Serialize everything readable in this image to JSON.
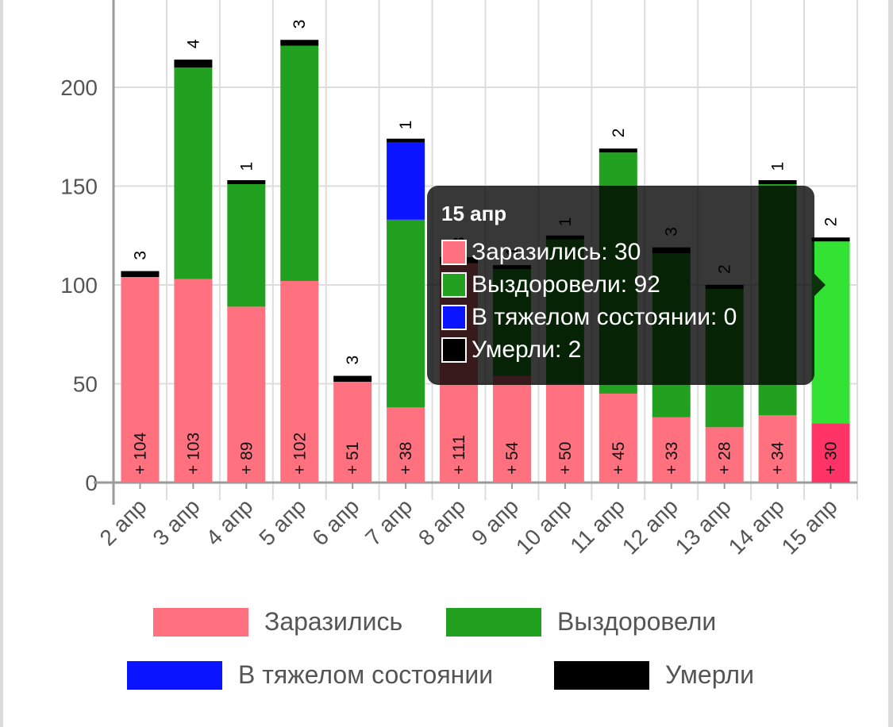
{
  "chart_data": {
    "type": "bar",
    "stacked": true,
    "categories": [
      "2 апр",
      "3 апр",
      "4 апр",
      "5 апр",
      "6 апр",
      "7 апр",
      "8 апр",
      "9 апр",
      "10 апр",
      "11 апр",
      "12 апр",
      "13 апр",
      "14 апр",
      "15 апр"
    ],
    "series": [
      {
        "name": "Заразились",
        "color": "#ff717f",
        "values": [
          104,
          103,
          89,
          102,
          51,
          38,
          111,
          54,
          50,
          45,
          33,
          28,
          34,
          30
        ]
      },
      {
        "name": "Выздоровели",
        "color": "#21a11f",
        "values": [
          0,
          107,
          62,
          119,
          0,
          95,
          0,
          54,
          73,
          122,
          83,
          70,
          117,
          92
        ]
      },
      {
        "name": "В тяжелом состоянии",
        "color": "#0a14ff",
        "values": [
          0,
          0,
          0,
          0,
          0,
          39,
          0,
          0,
          0,
          0,
          0,
          0,
          0,
          0
        ]
      },
      {
        "name": "Умерли",
        "color": "#000000",
        "values": [
          3,
          4,
          1,
          3,
          3,
          1,
          3,
          1,
          1,
          2,
          3,
          2,
          1,
          2
        ]
      }
    ],
    "data_label_prefix": "+ ",
    "ylim": [
      0,
      240
    ],
    "yticks": [
      0,
      50,
      100,
      150,
      200
    ],
    "grid": true,
    "legend": "bottom",
    "highlight_index": 13,
    "highlight_colors": {
      "Заразились": "#ff3366",
      "Выздоровели": "#33e333"
    }
  },
  "tooltip": {
    "title": "15 апр",
    "rows": [
      {
        "label": "Заразились: 30",
        "color": "#ff717f"
      },
      {
        "label": "Выздоровели: 92",
        "color": "#21a11f"
      },
      {
        "label": "В тяжелом состоянии: 0",
        "color": "#0a14ff"
      },
      {
        "label": "Умерли: 2",
        "color": "#000000"
      }
    ]
  },
  "legend": {
    "items": [
      {
        "label": "Заразились",
        "color": "#ff717f"
      },
      {
        "label": "Выздоровели",
        "color": "#21a11f"
      },
      {
        "label": "В тяжелом состоянии",
        "color": "#0a14ff"
      },
      {
        "label": "Умерли",
        "color": "#000000"
      }
    ]
  }
}
